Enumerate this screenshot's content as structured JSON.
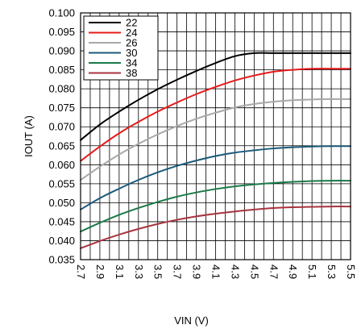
{
  "chart_data": {
    "type": "line",
    "xlabel": "VIN (V)",
    "ylabel": "IOUT (A)",
    "xlim": [
      2.7,
      5.5
    ],
    "ylim": [
      0.035,
      0.1
    ],
    "x_ticks": [
      "2.7",
      "2.9",
      "3.1",
      "3.3",
      "3.5",
      "3.7",
      "3.9",
      "4.1",
      "4.3",
      "4.5",
      "4.7",
      "4.9",
      "5.1",
      "5.3",
      "5.5"
    ],
    "y_ticks": [
      "0.035",
      "0.040",
      "0.045",
      "0.050",
      "0.055",
      "0.060",
      "0.065",
      "0.070",
      "0.075",
      "0.080",
      "0.085",
      "0.090",
      "0.095",
      "0.100"
    ],
    "grid": true,
    "legend_position": "top-left",
    "x": [
      2.7,
      2.9,
      3.1,
      3.3,
      3.5,
      3.7,
      3.9,
      4.1,
      4.3,
      4.5,
      4.7,
      4.9,
      5.1,
      5.3,
      5.5
    ],
    "series": [
      {
        "name": "22",
        "color": "#000000",
        "values": [
          0.0665,
          0.0706,
          0.074,
          0.0771,
          0.0799,
          0.0824,
          0.0847,
          0.0868,
          0.0886,
          0.0894,
          0.0894,
          0.0894,
          0.0894,
          0.0894,
          0.0894
        ]
      },
      {
        "name": "24",
        "color": "#e8191a",
        "values": [
          0.061,
          0.0648,
          0.0683,
          0.0713,
          0.074,
          0.0764,
          0.0786,
          0.0805,
          0.0822,
          0.0835,
          0.0845,
          0.085,
          0.0853,
          0.0853,
          0.0853
        ]
      },
      {
        "name": "26",
        "color": "#a8a8a8",
        "values": [
          0.056,
          0.0595,
          0.0627,
          0.0655,
          0.068,
          0.0702,
          0.0721,
          0.0737,
          0.0751,
          0.076,
          0.0766,
          0.077,
          0.0772,
          0.0773,
          0.0773
        ]
      },
      {
        "name": "30",
        "color": "#1b5a79",
        "values": [
          0.0482,
          0.0512,
          0.0537,
          0.056,
          0.058,
          0.0597,
          0.0611,
          0.0623,
          0.0632,
          0.0638,
          0.0643,
          0.0646,
          0.0648,
          0.0649,
          0.0649
        ]
      },
      {
        "name": "34",
        "color": "#1a7a4a",
        "values": [
          0.0424,
          0.0447,
          0.0468,
          0.0486,
          0.0502,
          0.0516,
          0.0527,
          0.0536,
          0.0543,
          0.0548,
          0.0552,
          0.0555,
          0.0557,
          0.0558,
          0.0558
        ]
      },
      {
        "name": "38",
        "color": "#a8343f",
        "values": [
          0.038,
          0.0399,
          0.0416,
          0.0431,
          0.0444,
          0.0455,
          0.0464,
          0.0471,
          0.0477,
          0.0482,
          0.0486,
          0.0488,
          0.0489,
          0.049,
          0.049
        ]
      }
    ]
  }
}
